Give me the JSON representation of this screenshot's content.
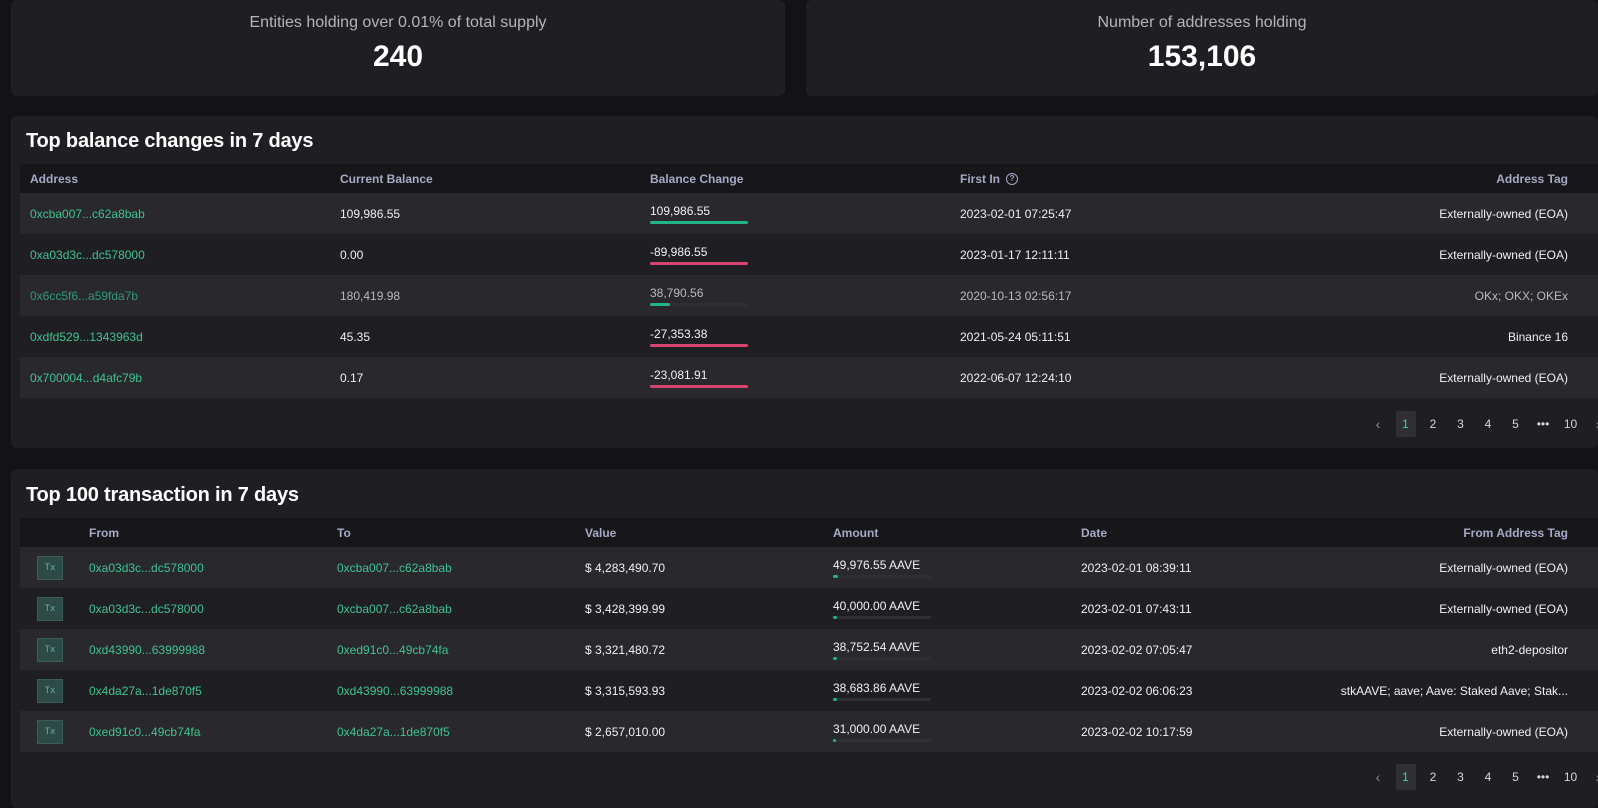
{
  "stats": {
    "entities_label": "Entities holding over 0.01% of total supply",
    "entities_value": "240",
    "addresses_label": "Number of addresses holding",
    "addresses_value": "153,106"
  },
  "balance_changes": {
    "title": "Top balance changes in 7 days",
    "columns": [
      "Address",
      "Current Balance",
      "Balance Change",
      "First In",
      "Address Tag"
    ],
    "rows": [
      {
        "address": "0xcba007...c62a8bab",
        "current_balance": "109,986.55",
        "balance_change": "109,986.55",
        "change_fraction": 1.0,
        "change_color": "#21b486",
        "first_in": "2023-02-01 07:25:47",
        "tag": "Externally-owned (EOA)"
      },
      {
        "address": "0xa03d3c...dc578000",
        "current_balance": "0.00",
        "balance_change": "-89,986.55",
        "change_fraction": 1.0,
        "change_color": "#d9436f",
        "first_in": "2023-01-17 12:11:11",
        "tag": "Externally-owned (EOA)"
      },
      {
        "address": "0x6cc5f6...a59fda7b",
        "current_balance": "180,419.98",
        "balance_change": "38,790.56",
        "change_fraction": 0.2,
        "change_color": "#21b486",
        "first_in": "2020-10-13 02:56:17",
        "tag": "OKx; OKX; OKEx"
      },
      {
        "address": "0xdfd529...1343963d",
        "current_balance": "45.35",
        "balance_change": "-27,353.38",
        "change_fraction": 1.0,
        "change_color": "#d9436f",
        "first_in": "2021-05-24 05:11:51",
        "tag": "Binance 16"
      },
      {
        "address": "0x700004...d4afc79b",
        "current_balance": "0.17",
        "balance_change": "-23,081.91",
        "change_fraction": 1.0,
        "change_color": "#d9436f",
        "first_in": "2022-06-07 12:24:10",
        "tag": "Externally-owned (EOA)"
      }
    ],
    "pagination": {
      "prev": "‹",
      "pages": [
        "1",
        "2",
        "3",
        "4",
        "5"
      ],
      "ellipsis": "•••",
      "last": "10",
      "next": "›",
      "active": "1"
    }
  },
  "transactions": {
    "title": "Top 100 transaction in 7 days",
    "columns": [
      "",
      "From",
      "To",
      "Value",
      "Amount",
      "Date",
      "From Address Tag"
    ],
    "tx_label": "Tx",
    "rows": [
      {
        "from": "0xa03d3c...dc578000",
        "to": "0xcba007...c62a8bab",
        "value": "$ 4,283,490.70",
        "amount": "49,976.55 AAVE",
        "amount_fraction": 0.05,
        "date": "2023-02-01 08:39:11",
        "tag": "Externally-owned (EOA)"
      },
      {
        "from": "0xa03d3c...dc578000",
        "to": "0xcba007...c62a8bab",
        "value": "$ 3,428,399.99",
        "amount": "40,000.00 AAVE",
        "amount_fraction": 0.04,
        "date": "2023-02-01 07:43:11",
        "tag": "Externally-owned (EOA)"
      },
      {
        "from": "0xd43990...63999988",
        "to": "0xed91c0...49cb74fa",
        "value": "$ 3,321,480.72",
        "amount": "38,752.54 AAVE",
        "amount_fraction": 0.04,
        "date": "2023-02-02 07:05:47",
        "tag": "eth2-depositor"
      },
      {
        "from": "0x4da27a...1de870f5",
        "to": "0xd43990...63999988",
        "value": "$ 3,315,593.93",
        "amount": "38,683.86 AAVE",
        "amount_fraction": 0.04,
        "date": "2023-02-02 06:06:23",
        "tag": "stkAAVE; aave; Aave: Staked Aave; Stak..."
      },
      {
        "from": "0xed91c0...49cb74fa",
        "to": "0x4da27a...1de870f5",
        "value": "$ 2,657,010.00",
        "amount": "31,000.00 AAVE",
        "amount_fraction": 0.03,
        "date": "2023-02-02 10:17:59",
        "tag": "Externally-owned (EOA)"
      }
    ],
    "pagination": {
      "prev": "‹",
      "pages": [
        "1",
        "2",
        "3",
        "4",
        "5"
      ],
      "ellipsis": "•••",
      "last": "10",
      "next": "›",
      "active": "1"
    }
  },
  "colors": {
    "accent_green": "#3fc38f",
    "negative_red": "#d9436f",
    "bar_green": "#21b486"
  },
  "icons": {
    "info": "info-icon",
    "tx": "tx-icon",
    "prev": "chevron-left-icon",
    "next": "chevron-right-icon"
  }
}
